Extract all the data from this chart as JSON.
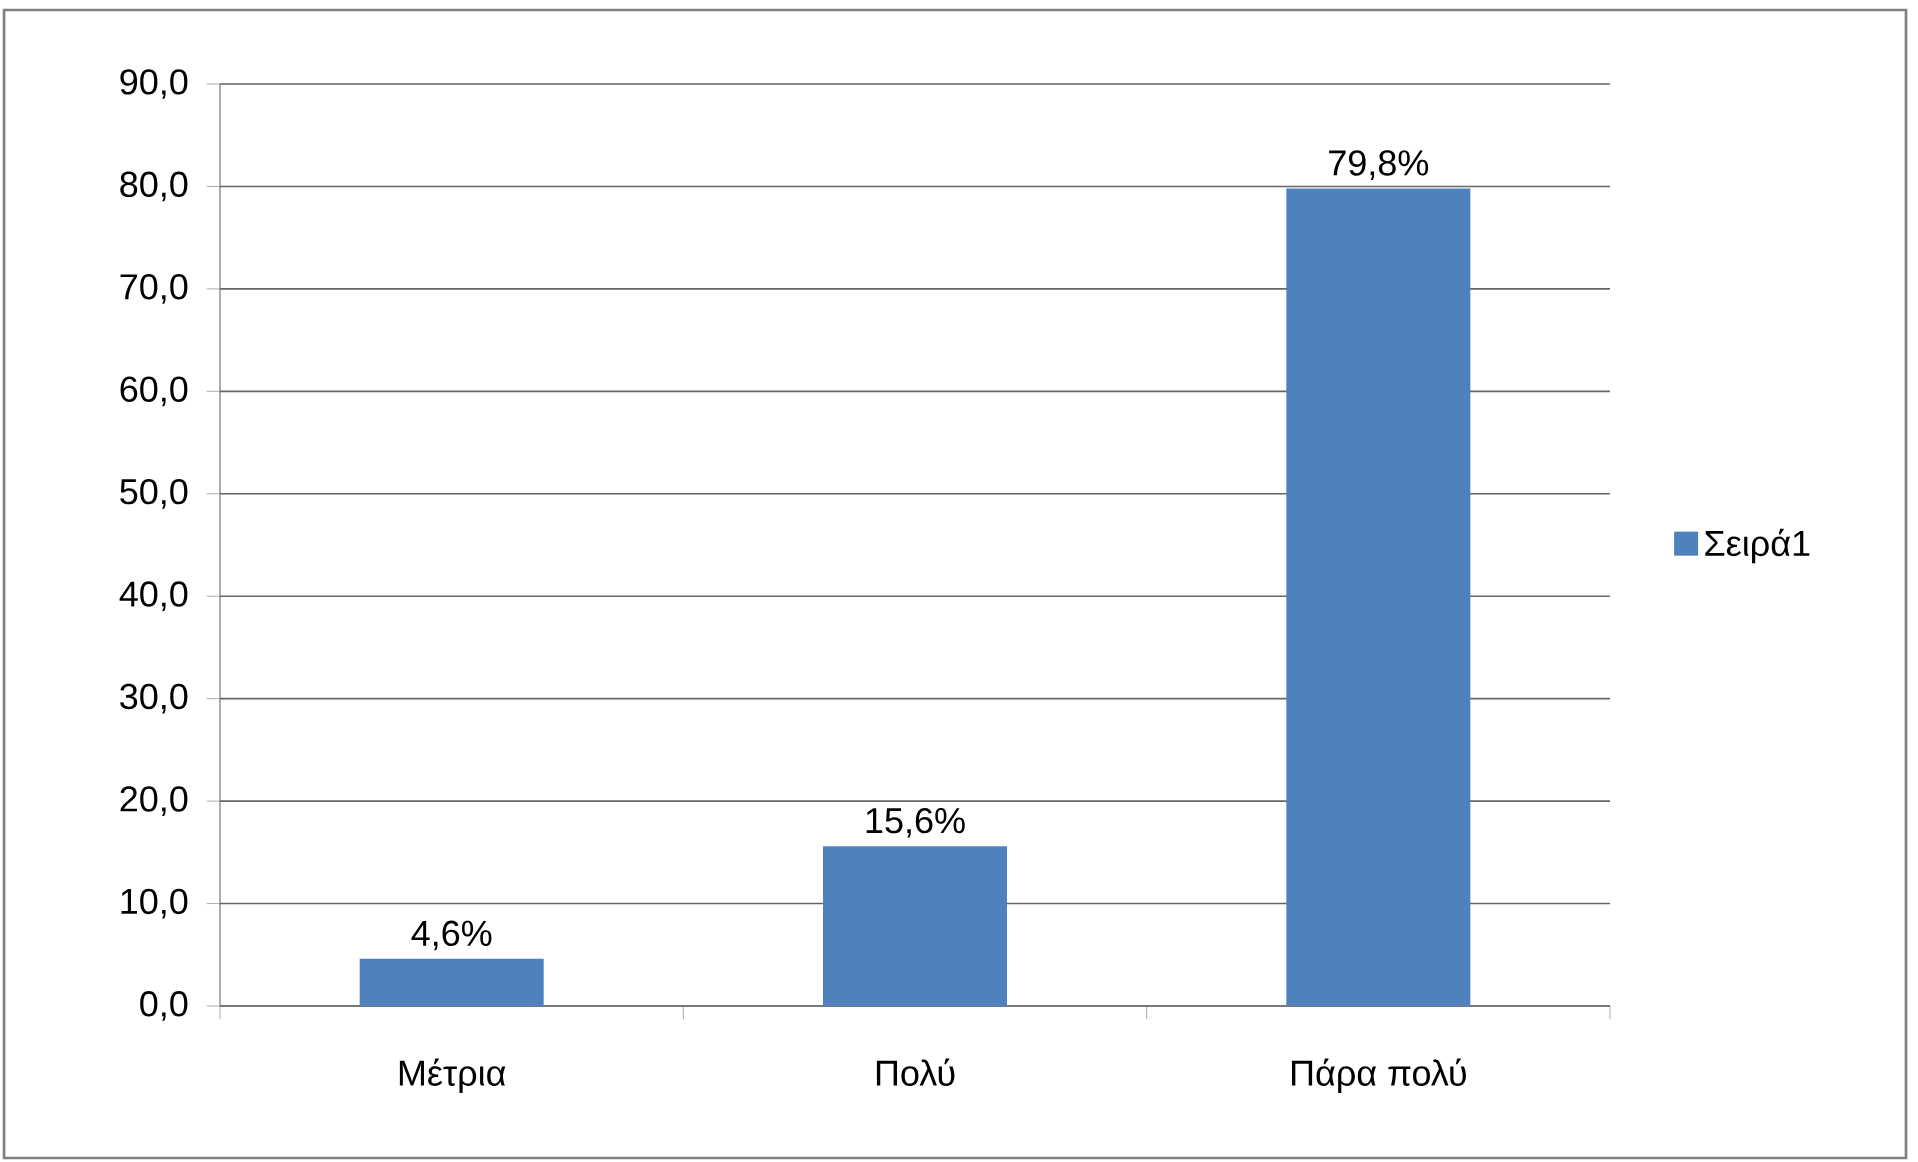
{
  "chart_data": {
    "type": "bar",
    "categories": [
      "Μέτρια",
      "Πολύ",
      "Πάρα πολύ"
    ],
    "series": [
      {
        "name": "Σειρά1",
        "color": "#4f81bd",
        "values": [
          4.6,
          15.6,
          79.8
        ],
        "value_labels": [
          "4,6%",
          "15,6%",
          "79,8%"
        ]
      }
    ],
    "ylim": [
      0,
      90
    ],
    "yticks": [
      {
        "value": 0,
        "label": "0,0"
      },
      {
        "value": 10,
        "label": "10,0"
      },
      {
        "value": 20,
        "label": "20,0"
      },
      {
        "value": 30,
        "label": "30,0"
      },
      {
        "value": 40,
        "label": "40,0"
      },
      {
        "value": 50,
        "label": "50,0"
      },
      {
        "value": 60,
        "label": "60,0"
      },
      {
        "value": 70,
        "label": "70,0"
      },
      {
        "value": 80,
        "label": "80,0"
      },
      {
        "value": 90,
        "label": "90,0"
      }
    ],
    "grid": "y",
    "legend": "right"
  }
}
